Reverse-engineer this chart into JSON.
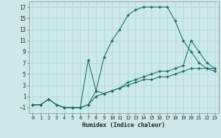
{
  "title": "",
  "xlabel": "Humidex (Indice chaleur)",
  "bg_color": "#cce8e8",
  "line_color": "#1a6e6a",
  "grid_color": "#b0d8d8",
  "xlim": [
    -0.5,
    23.5
  ],
  "ylim": [
    -2,
    18
  ],
  "xticks": [
    0,
    1,
    2,
    3,
    4,
    5,
    6,
    7,
    8,
    9,
    10,
    11,
    12,
    13,
    14,
    15,
    16,
    17,
    18,
    19,
    20,
    21,
    22,
    23
  ],
  "yticks": [
    -1,
    1,
    3,
    5,
    7,
    9,
    11,
    13,
    15,
    17
  ],
  "curve1_x": [
    0,
    1,
    2,
    3,
    4,
    5,
    6,
    7,
    8,
    9,
    10,
    11,
    12,
    13,
    14,
    15,
    16,
    17,
    18,
    19,
    20,
    21,
    22,
    23
  ],
  "curve1_y": [
    -0.5,
    -0.5,
    0.5,
    -0.5,
    -1,
    -1,
    -1,
    -0.5,
    2,
    8,
    11,
    13,
    15.5,
    16.5,
    17,
    17,
    17,
    17,
    14.5,
    11,
    9,
    7,
    6,
    5.5
  ],
  "curve2_x": [
    0,
    1,
    2,
    3,
    4,
    5,
    6,
    7,
    8,
    9,
    10,
    11,
    12,
    13,
    14,
    15,
    16,
    17,
    18,
    19,
    20,
    21,
    22,
    23
  ],
  "curve2_y": [
    -0.5,
    -0.5,
    0.5,
    -0.5,
    -1,
    -1,
    -1,
    7.5,
    2,
    1.5,
    2,
    2.5,
    3.5,
    4,
    4.5,
    5,
    5.5,
    5.5,
    6,
    6.5,
    11,
    9,
    7,
    6
  ],
  "curve3_x": [
    0,
    1,
    2,
    3,
    4,
    5,
    6,
    7,
    8,
    9,
    10,
    11,
    12,
    13,
    14,
    15,
    16,
    17,
    18,
    19,
    20,
    21,
    22,
    23
  ],
  "curve3_y": [
    -0.5,
    -0.5,
    0.5,
    -0.5,
    -1,
    -1,
    -1,
    -0.5,
    1,
    1.5,
    2,
    2.5,
    3,
    3.5,
    4,
    4,
    4.5,
    4.5,
    5,
    5.5,
    6,
    6,
    6,
    6
  ]
}
